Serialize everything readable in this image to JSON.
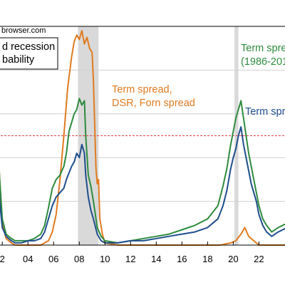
{
  "source_text": "browser.com",
  "legend": {
    "line1": "d recession",
    "line2": "bability"
  },
  "colors": {
    "orange": "#E07B20",
    "green": "#2E8B3E",
    "navy": "#1F4E8C",
    "recession": "#D9D9D9",
    "threshold": "#E04040",
    "grid": "#D0D0D0"
  },
  "annotations": {
    "orange_line1": "Term spread,",
    "orange_line2": "DSR, Forn spread",
    "green_line1": "Term spre",
    "green_line2": "(1986-201",
    "navy_line1": "Term spre"
  },
  "chart_data": {
    "type": "line",
    "xlim": [
      2001.6,
      2024.2
    ],
    "ylim": [
      0,
      1
    ],
    "x_tick_labels": [
      {
        "x": 2002,
        "label": "2"
      },
      {
        "x": 2004,
        "label": "04"
      },
      {
        "x": 2006,
        "label": "06"
      },
      {
        "x": 2008,
        "label": "08"
      },
      {
        "x": 2010,
        "label": "10"
      },
      {
        "x": 2012,
        "label": "12"
      },
      {
        "x": 2014,
        "label": "14"
      },
      {
        "x": 2016,
        "label": "16"
      },
      {
        "x": 2018,
        "label": "18"
      },
      {
        "x": 2020,
        "label": "20"
      },
      {
        "x": 2022,
        "label": "22"
      }
    ],
    "gridlines_y": [
      0.2,
      0.4,
      0.6,
      0.8
    ],
    "threshold": 0.5,
    "recessions": [
      [
        2007.9,
        2009.5
      ],
      [
        2020.1,
        2020.4
      ]
    ],
    "series": [
      {
        "color": "#E07B20",
        "points": [
          [
            2001.6,
            0.5
          ],
          [
            2001.8,
            0.3
          ],
          [
            2002.0,
            0.1
          ],
          [
            2002.3,
            0.03
          ],
          [
            2002.7,
            0.01
          ],
          [
            2003.0,
            0.0
          ],
          [
            2004.0,
            0.0
          ],
          [
            2005.0,
            0.0
          ],
          [
            2005.6,
            0.02
          ],
          [
            2005.9,
            0.06
          ],
          [
            2006.2,
            0.14
          ],
          [
            2006.5,
            0.3
          ],
          [
            2006.8,
            0.5
          ],
          [
            2007.1,
            0.72
          ],
          [
            2007.4,
            0.86
          ],
          [
            2007.6,
            0.93
          ],
          [
            2007.8,
            0.96
          ],
          [
            2008.0,
            0.94
          ],
          [
            2008.2,
            0.98
          ],
          [
            2008.4,
            0.92
          ],
          [
            2008.6,
            0.95
          ],
          [
            2008.8,
            0.9
          ],
          [
            2009.0,
            0.88
          ],
          [
            2009.1,
            0.75
          ],
          [
            2009.2,
            0.55
          ],
          [
            2009.3,
            0.35
          ],
          [
            2009.4,
            0.28
          ],
          [
            2009.5,
            0.3
          ],
          [
            2009.6,
            0.12
          ],
          [
            2009.8,
            0.05
          ],
          [
            2010.0,
            0.01
          ],
          [
            2011.0,
            0.0
          ],
          [
            2012.0,
            0.0
          ],
          [
            2013.0,
            0.0
          ],
          [
            2014.0,
            0.0
          ],
          [
            2015.0,
            0.0
          ],
          [
            2016.0,
            0.0
          ],
          [
            2017.0,
            0.0
          ],
          [
            2018.0,
            0.0
          ],
          [
            2019.0,
            0.0
          ],
          [
            2019.8,
            0.01
          ],
          [
            2020.2,
            0.02
          ],
          [
            2020.6,
            0.05
          ],
          [
            2020.9,
            0.08
          ],
          [
            2021.2,
            0.04
          ],
          [
            2021.6,
            0.02
          ],
          [
            2022.0,
            0.0
          ],
          [
            2023.0,
            0.0
          ],
          [
            2024.2,
            0.0
          ]
        ]
      },
      {
        "color": "#2E8B3E",
        "points": [
          [
            2001.6,
            0.55
          ],
          [
            2001.8,
            0.3
          ],
          [
            2002.0,
            0.12
          ],
          [
            2002.3,
            0.05
          ],
          [
            2002.7,
            0.03
          ],
          [
            2003.0,
            0.02
          ],
          [
            2003.5,
            0.02
          ],
          [
            2004.0,
            0.02
          ],
          [
            2004.5,
            0.03
          ],
          [
            2005.0,
            0.05
          ],
          [
            2005.3,
            0.09
          ],
          [
            2005.6,
            0.17
          ],
          [
            2005.9,
            0.26
          ],
          [
            2006.2,
            0.3
          ],
          [
            2006.5,
            0.32
          ],
          [
            2006.8,
            0.36
          ],
          [
            2007.0,
            0.42
          ],
          [
            2007.2,
            0.52
          ],
          [
            2007.4,
            0.56
          ],
          [
            2007.6,
            0.6
          ],
          [
            2007.8,
            0.62
          ],
          [
            2008.0,
            0.67
          ],
          [
            2008.2,
            0.64
          ],
          [
            2008.4,
            0.66
          ],
          [
            2008.5,
            0.5
          ],
          [
            2008.7,
            0.32
          ],
          [
            2008.9,
            0.27
          ],
          [
            2009.1,
            0.2
          ],
          [
            2009.4,
            0.08
          ],
          [
            2009.7,
            0.04
          ],
          [
            2010.0,
            0.02
          ],
          [
            2011.0,
            0.01
          ],
          [
            2012.0,
            0.02
          ],
          [
            2013.0,
            0.03
          ],
          [
            2014.0,
            0.04
          ],
          [
            2015.0,
            0.05
          ],
          [
            2016.0,
            0.07
          ],
          [
            2017.0,
            0.09
          ],
          [
            2018.0,
            0.12
          ],
          [
            2018.8,
            0.18
          ],
          [
            2019.2,
            0.27
          ],
          [
            2019.5,
            0.35
          ],
          [
            2019.8,
            0.46
          ],
          [
            2020.0,
            0.52
          ],
          [
            2020.2,
            0.58
          ],
          [
            2020.4,
            0.62
          ],
          [
            2020.6,
            0.66
          ],
          [
            2020.8,
            0.58
          ],
          [
            2021.0,
            0.5
          ],
          [
            2021.2,
            0.42
          ],
          [
            2021.4,
            0.36
          ],
          [
            2021.6,
            0.3
          ],
          [
            2021.8,
            0.24
          ],
          [
            2022.0,
            0.18
          ],
          [
            2022.3,
            0.12
          ],
          [
            2022.6,
            0.09
          ],
          [
            2023.0,
            0.06
          ],
          [
            2023.5,
            0.08
          ],
          [
            2024.2,
            0.1
          ]
        ]
      },
      {
        "color": "#1F4E8C",
        "points": [
          [
            2001.6,
            0.45
          ],
          [
            2001.8,
            0.2
          ],
          [
            2002.0,
            0.08
          ],
          [
            2002.3,
            0.04
          ],
          [
            2002.7,
            0.02
          ],
          [
            2003.0,
            0.01
          ],
          [
            2003.5,
            0.01
          ],
          [
            2004.0,
            0.02
          ],
          [
            2004.5,
            0.02
          ],
          [
            2005.0,
            0.03
          ],
          [
            2005.3,
            0.06
          ],
          [
            2005.6,
            0.12
          ],
          [
            2005.9,
            0.18
          ],
          [
            2006.2,
            0.22
          ],
          [
            2006.5,
            0.24
          ],
          [
            2006.8,
            0.26
          ],
          [
            2007.0,
            0.3
          ],
          [
            2007.2,
            0.33
          ],
          [
            2007.4,
            0.36
          ],
          [
            2007.6,
            0.38
          ],
          [
            2007.8,
            0.42
          ],
          [
            2008.0,
            0.4
          ],
          [
            2008.2,
            0.46
          ],
          [
            2008.4,
            0.42
          ],
          [
            2008.5,
            0.32
          ],
          [
            2008.7,
            0.22
          ],
          [
            2008.9,
            0.16
          ],
          [
            2009.1,
            0.12
          ],
          [
            2009.4,
            0.05
          ],
          [
            2009.7,
            0.02
          ],
          [
            2010.0,
            0.01
          ],
          [
            2011.0,
            0.01
          ],
          [
            2012.0,
            0.02
          ],
          [
            2013.0,
            0.02
          ],
          [
            2014.0,
            0.03
          ],
          [
            2015.0,
            0.04
          ],
          [
            2016.0,
            0.05
          ],
          [
            2017.0,
            0.06
          ],
          [
            2018.0,
            0.08
          ],
          [
            2018.8,
            0.12
          ],
          [
            2019.2,
            0.18
          ],
          [
            2019.5,
            0.25
          ],
          [
            2019.8,
            0.35
          ],
          [
            2020.0,
            0.4
          ],
          [
            2020.2,
            0.44
          ],
          [
            2020.4,
            0.5
          ],
          [
            2020.6,
            0.54
          ],
          [
            2020.8,
            0.46
          ],
          [
            2021.0,
            0.4
          ],
          [
            2021.2,
            0.34
          ],
          [
            2021.4,
            0.28
          ],
          [
            2021.6,
            0.24
          ],
          [
            2021.8,
            0.2
          ],
          [
            2022.0,
            0.14
          ],
          [
            2022.3,
            0.09
          ],
          [
            2022.6,
            0.06
          ],
          [
            2023.0,
            0.04
          ],
          [
            2023.5,
            0.06
          ],
          [
            2024.2,
            0.08
          ]
        ]
      }
    ]
  }
}
